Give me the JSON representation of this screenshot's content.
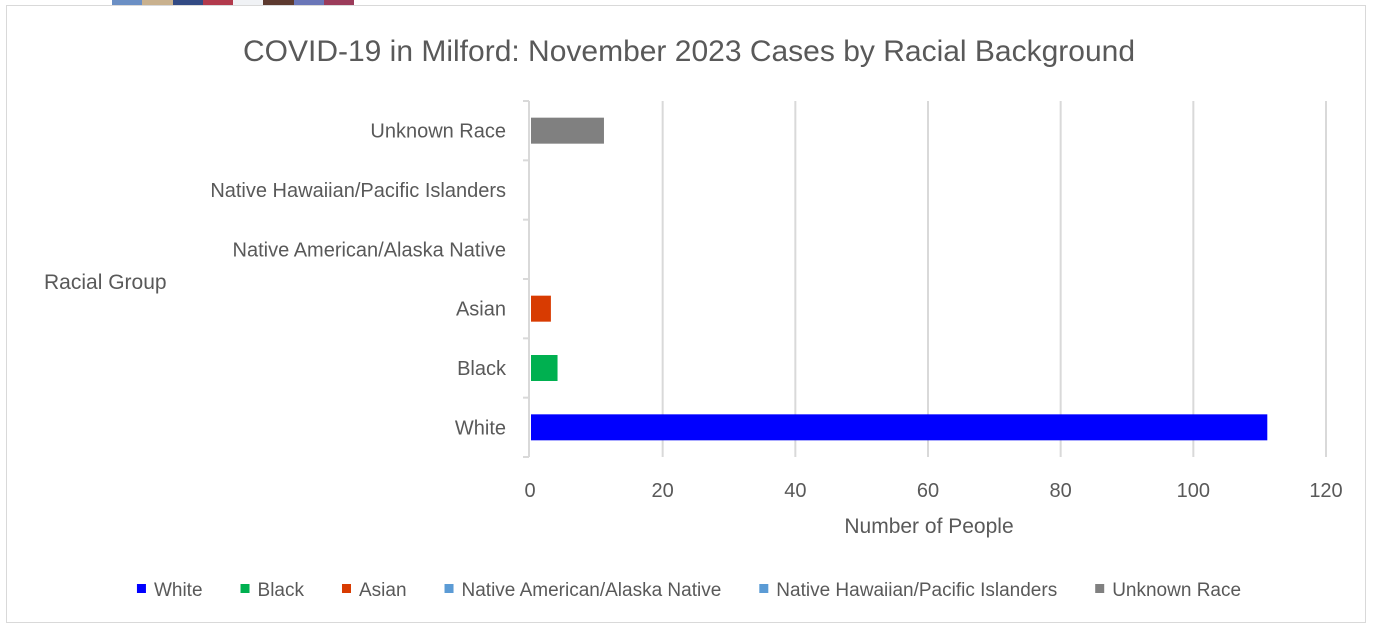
{
  "chart_data": {
    "type": "bar",
    "orientation": "horizontal",
    "title": "COVID-19 in Milford: November 2023 Cases by Racial Background",
    "xlabel": "Number of People",
    "ylabel": "Racial Group",
    "xlim": [
      0,
      120
    ],
    "xticks": [
      "0",
      "20",
      "40",
      "60",
      "80",
      "100",
      "120"
    ],
    "grid": true,
    "legend_position": "bottom",
    "categories": [
      "White",
      "Black",
      "Asian",
      "Native American/Alaska Native",
      "Native Hawaiian/Pacific Islanders",
      "Unknown Race"
    ],
    "series": [
      {
        "name": "White",
        "values": [
          111,
          0,
          0,
          0,
          0,
          0
        ],
        "color": "#0000ff"
      },
      {
        "name": "Black",
        "values": [
          0,
          4,
          0,
          0,
          0,
          0
        ],
        "color": "#00b050"
      },
      {
        "name": "Asian",
        "values": [
          0,
          0,
          3,
          0,
          0,
          0
        ],
        "color": "#d83b01"
      },
      {
        "name": "Native American/Alaska Native",
        "values": [
          0,
          0,
          0,
          0,
          0,
          0
        ],
        "color": "#5b9bd5"
      },
      {
        "name": "Native Hawaiian/Pacific Islanders",
        "values": [
          0,
          0,
          0,
          0,
          0,
          0
        ],
        "color": "#5b9bd5"
      },
      {
        "name": "Unknown Race",
        "values": [
          0,
          0,
          0,
          0,
          0,
          11
        ],
        "color": "#808080"
      }
    ]
  }
}
